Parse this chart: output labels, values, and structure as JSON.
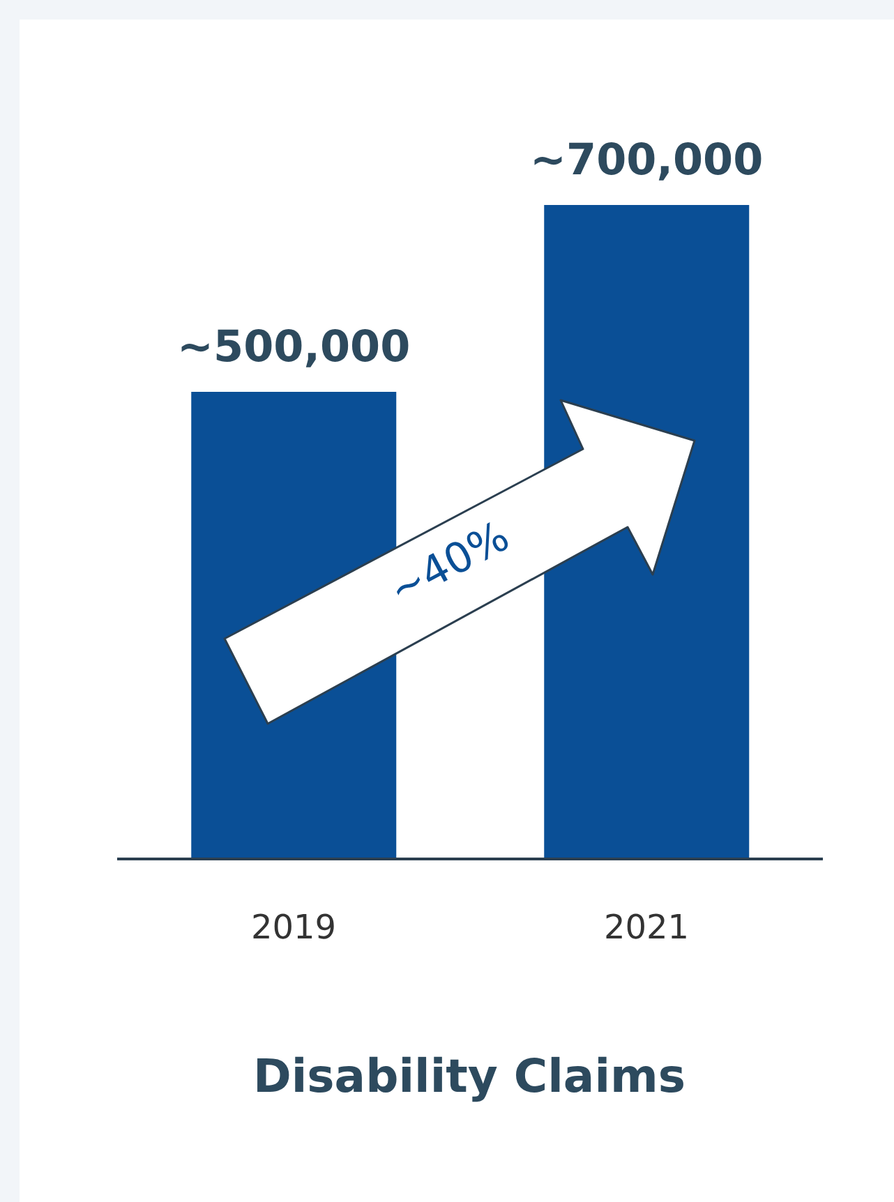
{
  "chart_data": {
    "type": "bar",
    "xlabel": "Disability Claims",
    "categories": [
      "2019",
      "2021"
    ],
    "values": [
      500000,
      700000
    ],
    "value_labels": [
      "~500,000",
      "~700,000"
    ],
    "color": "#0a4f96",
    "annotations": [
      "~40%"
    ],
    "grid": false,
    "legend": false
  }
}
